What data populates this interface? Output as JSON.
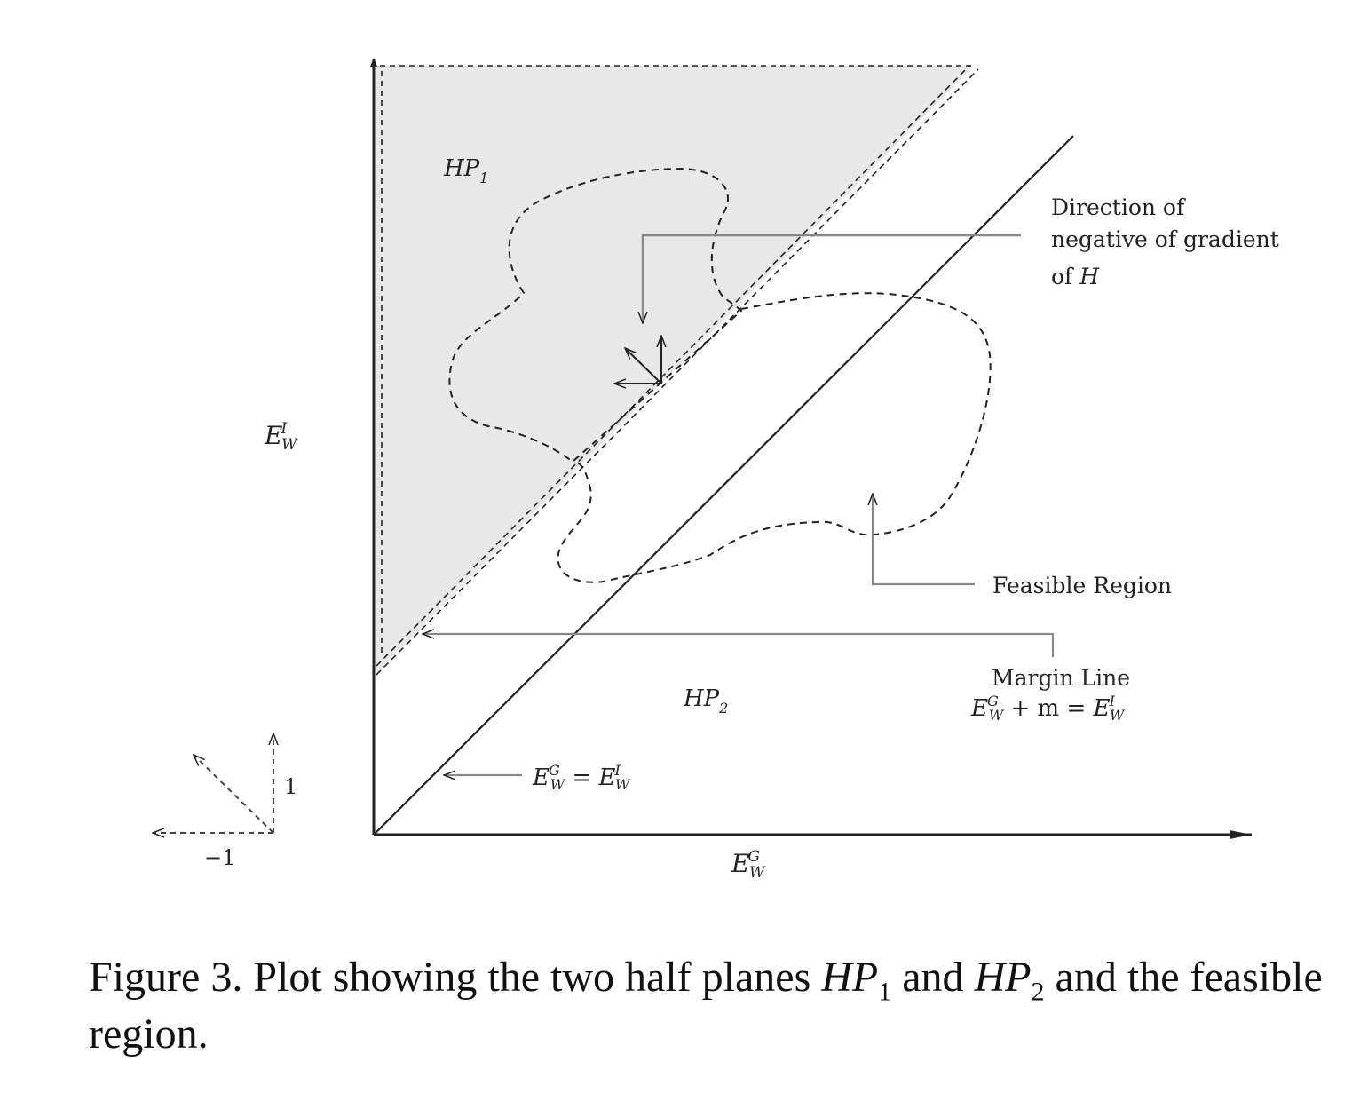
{
  "diagram": {
    "axis_x_label": {
      "base": "E",
      "sup": "G",
      "sub": "W"
    },
    "axis_y_label": {
      "base": "E",
      "sup": "I",
      "sub": "W"
    },
    "hp1_label": {
      "base": "HP",
      "sub": "1"
    },
    "hp2_label": {
      "base": "HP",
      "sub": "2"
    },
    "gradient_annotation": {
      "line1": "Direction of",
      "line2": "negative of gradient",
      "line3_prefix": "of ",
      "line3_var": "H"
    },
    "feasible_label": "Feasible Region",
    "margin_annotation": {
      "title": "Margin Line",
      "lhs_base": "E",
      "lhs_sup": "G",
      "lhs_sub": "W",
      "mid": " + m = ",
      "rhs_base": "E",
      "rhs_sup": "I",
      "rhs_sub": "W"
    },
    "diagonal_annotation": {
      "lhs_base": "E",
      "lhs_sup": "G",
      "lhs_sub": "W",
      "mid": " = ",
      "rhs_base": "E",
      "rhs_sup": "I",
      "rhs_sub": "W"
    },
    "legend_x_tick": "−1",
    "legend_y_tick": "1",
    "colors": {
      "shaded": "#e8e8e8",
      "ink": "#222222"
    }
  },
  "caption": {
    "prefix": "Figure 3. Plot showing the two half planes ",
    "hp1_base": "HP",
    "hp1_sub": "1",
    "middle": " and ",
    "hp2_base": "HP",
    "hp2_sub": "2",
    "suffix": " and the feasible region."
  }
}
